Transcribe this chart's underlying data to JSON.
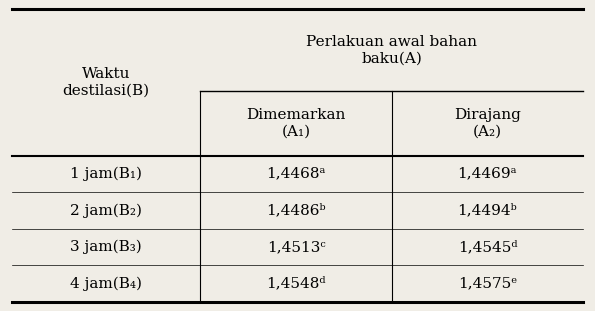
{
  "col_header_1": "Waktu\ndestilasi(B)",
  "col_header_2": "Perlakuan awal bahan\nbaku(A)",
  "sub_header_A1": "Dimemarkan\n(A₁)",
  "sub_header_A2": "Dirajang\n(A₂)",
  "rows": [
    [
      "1 jam(B₁)",
      "1,4468ᵃ",
      "1,4469ᵃ"
    ],
    [
      "2 jam(B₂)",
      "1,4486ᵇ",
      "1,4494ᵇ"
    ],
    [
      "3 jam(B₃)",
      "1,4513ᶜ",
      "1,4545ᵈ"
    ],
    [
      "4 jam(B₄)",
      "1,4548ᵈ",
      "1,4575ᵉ"
    ]
  ],
  "bg_color": "#f0ede6",
  "font_size": 11,
  "font_size_header": 11
}
